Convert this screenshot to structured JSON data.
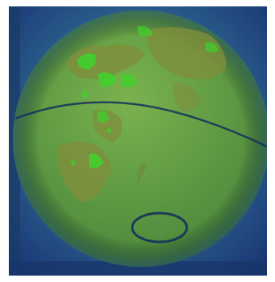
{
  "image": {
    "subject": "globe",
    "palette": {
      "background_dark": "#15306b",
      "background_mid": "#2a5d8a",
      "globe_base": "#5e9a43",
      "globe_highlight": "#7bb24e",
      "land_olive": "#7e8e3c",
      "land_bright": "#3fd22b",
      "line_dark": "#16305c"
    }
  }
}
